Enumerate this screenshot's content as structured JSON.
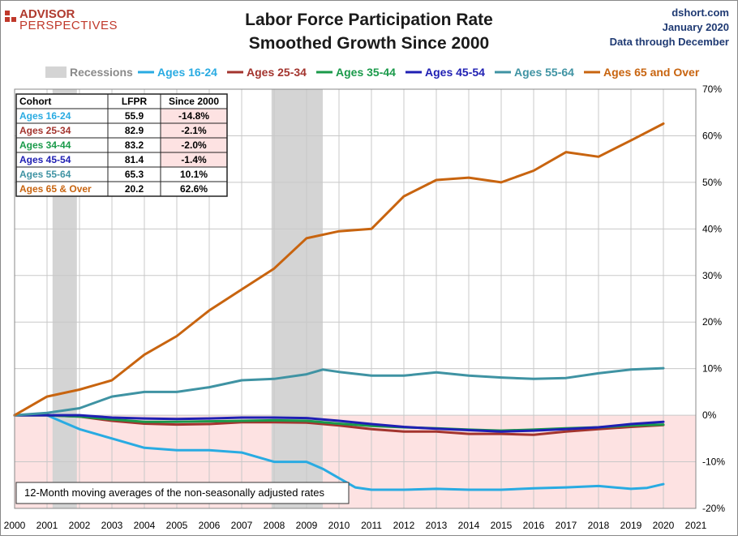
{
  "header": {
    "logo_line1": "ADVISOR",
    "logo_line2": "PERSPECTIVES",
    "title_line1": "Labor Force Participation Rate",
    "title_line2": "Smoothed Growth Since 2000",
    "source": "dshort.com",
    "date": "January 2020",
    "data_through": "Data through December"
  },
  "colors": {
    "recession": "#d4d4d4",
    "negative_band": "#fde2e2",
    "grid": "#c8c8c8",
    "ages_16_24": "#29abe2",
    "ages_25_34": "#a3342e",
    "ages_35_44": "#1a9a4a",
    "ages_45_54": "#1f1fb3",
    "ages_55_64": "#3f93a3",
    "ages_65_over": "#c8640f"
  },
  "table": {
    "headers": [
      "Cohort",
      "LFPR",
      "Since 2000"
    ],
    "rows": [
      {
        "cohort": "Ages 16-24",
        "lfpr": "55.9",
        "since": "-14.8%",
        "color": "#29abe2",
        "neg": true
      },
      {
        "cohort": "Ages 25-34",
        "lfpr": "82.9",
        "since": "-2.1%",
        "color": "#a3342e",
        "neg": true
      },
      {
        "cohort": "Ages 34-44",
        "lfpr": "83.2",
        "since": "-2.0%",
        "color": "#1a9a4a",
        "neg": true
      },
      {
        "cohort": "Ages 45-54",
        "lfpr": "81.4",
        "since": "-1.4%",
        "color": "#1f1fb3",
        "neg": true
      },
      {
        "cohort": "Ages 55-64",
        "lfpr": "65.3",
        "since": "10.1%",
        "color": "#3f93a3",
        "neg": false
      },
      {
        "cohort": "Ages 65  & Over",
        "lfpr": "20.2",
        "since": "62.6%",
        "color": "#c8640f",
        "neg": false
      }
    ]
  },
  "note": "12-Month moving  averages of the non-seasonally adjusted rates",
  "chart_data": {
    "type": "line",
    "xlim": [
      2000,
      2021
    ],
    "ylim": [
      -20,
      70
    ],
    "x_ticks": [
      "2000",
      "2001",
      "2002",
      "2003",
      "2004",
      "2005",
      "2006",
      "2007",
      "2008",
      "2009",
      "2010",
      "2011",
      "2012",
      "2013",
      "2014",
      "2015",
      "2016",
      "2017",
      "2018",
      "2019",
      "2020",
      "2021"
    ],
    "y_ticks": [
      "-20%",
      "-10%",
      "0%",
      "10%",
      "20%",
      "30%",
      "40%",
      "50%",
      "60%",
      "70%"
    ],
    "legend": [
      "Recessions",
      "Ages 16-24",
      "Ages 25-34",
      "Ages 35-44",
      "Ages 45-54",
      "Ages 55-64",
      "Ages 65 and Over"
    ],
    "legend_position": "top",
    "recessions": [
      [
        2001.17,
        2001.92
      ],
      [
        2007.92,
        2009.5
      ]
    ],
    "series": [
      {
        "name": "Ages 16-24",
        "color": "#29abe2",
        "x": [
          2000,
          2001,
          2001.5,
          2002,
          2003,
          2004,
          2005,
          2006,
          2007,
          2008,
          2009,
          2009.5,
          2010,
          2010.5,
          2011,
          2012,
          2013,
          2014,
          2015,
          2016,
          2017,
          2018,
          2019,
          2019.5,
          2020
        ],
        "y": [
          0,
          0,
          -1.5,
          -3,
          -5,
          -7,
          -7.5,
          -7.5,
          -8,
          -10,
          -10,
          -11.5,
          -13.5,
          -15.5,
          -16,
          -16,
          -15.8,
          -16,
          -16,
          -15.7,
          -15.5,
          -15.2,
          -15.8,
          -15.6,
          -14.8
        ]
      },
      {
        "name": "Ages 25-34",
        "color": "#a3342e",
        "x": [
          2000,
          2001,
          2002,
          2003,
          2004,
          2005,
          2006,
          2007,
          2008,
          2009,
          2010,
          2011,
          2012,
          2013,
          2014,
          2015,
          2016,
          2017,
          2018,
          2019,
          2020
        ],
        "y": [
          0,
          0,
          -0.3,
          -1.2,
          -1.8,
          -2,
          -1.9,
          -1.5,
          -1.5,
          -1.6,
          -2.2,
          -3,
          -3.5,
          -3.5,
          -4,
          -4,
          -4.2,
          -3.5,
          -3,
          -2.5,
          -2.1
        ]
      },
      {
        "name": "Ages 35-44",
        "color": "#1a9a4a",
        "x": [
          2000,
          2001,
          2002,
          2003,
          2004,
          2005,
          2006,
          2007,
          2008,
          2009,
          2010,
          2011,
          2012,
          2013,
          2014,
          2015,
          2016,
          2017,
          2018,
          2019,
          2020
        ],
        "y": [
          0,
          0,
          -0.3,
          -0.9,
          -1.4,
          -1.4,
          -1.3,
          -1.2,
          -1.1,
          -1.2,
          -1.8,
          -2.3,
          -2.6,
          -2.8,
          -3.1,
          -3.3,
          -3.1,
          -2.8,
          -2.6,
          -2.2,
          -2.0
        ]
      },
      {
        "name": "Ages 45-54",
        "color": "#1f1fb3",
        "x": [
          2000,
          2001,
          2002,
          2003,
          2004,
          2005,
          2006,
          2007,
          2008,
          2009,
          2010,
          2011,
          2012,
          2013,
          2014,
          2015,
          2016,
          2017,
          2018,
          2019,
          2020
        ],
        "y": [
          0,
          0,
          0,
          -0.5,
          -0.7,
          -0.8,
          -0.7,
          -0.5,
          -0.5,
          -0.6,
          -1.2,
          -1.9,
          -2.5,
          -2.9,
          -3.2,
          -3.5,
          -3.3,
          -3.0,
          -2.6,
          -1.9,
          -1.4
        ]
      },
      {
        "name": "Ages 55-64",
        "color": "#3f93a3",
        "x": [
          2000,
          2001,
          2002,
          2003,
          2004,
          2005,
          2006,
          2007,
          2008,
          2009,
          2009.5,
          2010,
          2011,
          2012,
          2013,
          2014,
          2015,
          2016,
          2017,
          2018,
          2019,
          2020
        ],
        "y": [
          0,
          0.5,
          1.5,
          4,
          5,
          5,
          6,
          7.5,
          7.8,
          8.8,
          9.8,
          9.3,
          8.5,
          8.5,
          9.2,
          8.5,
          8.1,
          7.8,
          8,
          9,
          9.8,
          10.1
        ]
      },
      {
        "name": "Ages 65 and Over",
        "color": "#c8640f",
        "x": [
          2000,
          2001,
          2002,
          2003,
          2004,
          2005,
          2006,
          2007,
          2008,
          2009,
          2010,
          2011,
          2012,
          2013,
          2014,
          2015,
          2016,
          2017,
          2018,
          2019,
          2020
        ],
        "y": [
          0,
          4,
          5.5,
          7.5,
          13,
          17,
          22.5,
          27,
          31.5,
          38,
          39.5,
          40,
          47,
          50.5,
          51,
          50,
          52.5,
          56.5,
          55.5,
          59,
          62.6
        ]
      }
    ]
  }
}
